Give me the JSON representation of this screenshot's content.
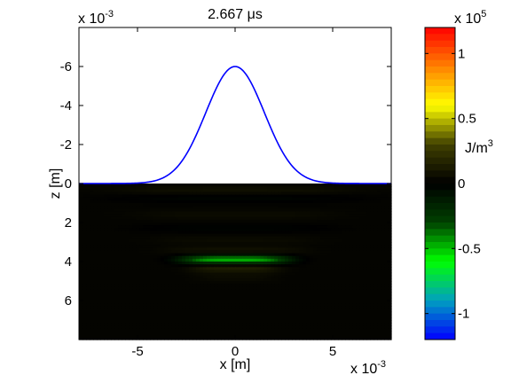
{
  "chart_data": {
    "type": "heatmap",
    "title": "2.667 μs",
    "xlabel": "x [m]",
    "ylabel": "z [m]",
    "x_multiplier": {
      "base": "x 10",
      "exp": "-3"
    },
    "y_multiplier": {
      "base": "x 10",
      "exp": "-3"
    },
    "xlim": [
      -8,
      8
    ],
    "ylim": [
      -8,
      8
    ],
    "y_reversed": true,
    "x_ticks": [
      -5,
      0,
      5
    ],
    "x_tick_labels": [
      "-5",
      "0",
      "5"
    ],
    "y_ticks": [
      -6,
      -4,
      -2,
      0,
      2,
      4,
      6
    ],
    "y_tick_labels": [
      "-6",
      "-4",
      "-2",
      "0",
      "2",
      "4",
      "6"
    ],
    "surface_profile": {
      "color": "#0000ff",
      "shape": "gaussian",
      "center_x": 0,
      "peak_z": -6,
      "sigma": 1.5,
      "baseline_z": 0,
      "x_range": [
        -8,
        8
      ]
    },
    "field": {
      "z_range": [
        0,
        8
      ],
      "bands": [
        {
          "z": 0.35,
          "x_halfwidth": 6.0,
          "value": 0.05
        },
        {
          "z": 0.75,
          "x_halfwidth": 6.5,
          "value": -0.04
        },
        {
          "z": 1.6,
          "x_halfwidth": 5.0,
          "value": 0.035
        },
        {
          "z": 2.3,
          "x_halfwidth": 5.0,
          "value": -0.035
        },
        {
          "z": 2.9,
          "x_halfwidth": 4.0,
          "value": 0.03
        },
        {
          "z": 3.45,
          "x_halfwidth": 3.5,
          "value": 0.06
        },
        {
          "z": 3.9,
          "x_halfwidth": 2.8,
          "value": -0.5
        },
        {
          "z": 4.35,
          "x_halfwidth": 2.3,
          "value": 0.12
        },
        {
          "z": 4.8,
          "x_halfwidth": 2.0,
          "value": 0.03
        }
      ]
    },
    "colorbar": {
      "label": "J/m3",
      "label_base": "J/m",
      "label_sup": "3",
      "multiplier": {
        "base": "x 10",
        "exp": "5"
      },
      "clim": [
        -1.2,
        1.2
      ],
      "ticks": [
        -1,
        -0.5,
        0,
        0.5,
        1
      ],
      "tick_labels": [
        "-1",
        "-0.5",
        "0",
        "0.5",
        "1"
      ],
      "colors": [
        "#0000ff",
        "#00a0c0",
        "#00ff00",
        "#004000",
        "#000000",
        "#404000",
        "#ffff00",
        "#ff8000",
        "#ff0000"
      ]
    }
  }
}
